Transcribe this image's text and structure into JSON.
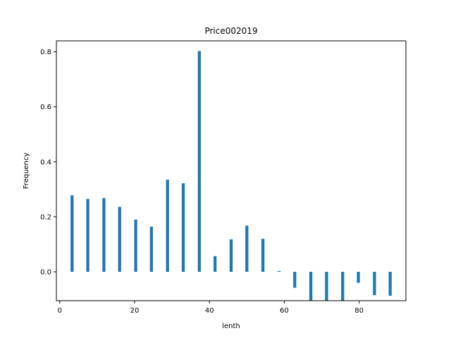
{
  "chart_data": {
    "type": "bar",
    "title": "Price002019",
    "xlabel": "lenth",
    "ylabel": "Frequency",
    "xlim": [
      -0.9,
      92.5
    ],
    "ylim": [
      -0.105,
      0.84
    ],
    "x_ticks": [
      0,
      20,
      40,
      60,
      80
    ],
    "y_ticks": [
      0.0,
      0.2,
      0.4,
      0.6,
      0.8
    ],
    "x_tick_labels": [
      "0",
      "20",
      "40",
      "60",
      "80"
    ],
    "y_tick_labels": [
      "0.0",
      "0.2",
      "0.4",
      "0.6",
      "0.8"
    ],
    "bar_width": 0.8,
    "color": "#1f77b4",
    "grid": false,
    "series": [
      {
        "x": [
          3.3,
          7.5,
          11.8,
          16.0,
          20.3,
          24.5,
          28.8,
          33.0,
          37.3,
          41.5,
          45.8,
          50.0,
          54.3,
          58.6,
          62.8,
          67.1,
          71.3,
          75.6,
          79.8,
          84.1,
          88.3
        ],
        "values": [
          0.278,
          0.265,
          0.268,
          0.236,
          0.19,
          0.164,
          0.335,
          0.322,
          0.803,
          0.057,
          0.118,
          0.168,
          0.12,
          0.003,
          -0.058,
          -0.105,
          -0.105,
          -0.105,
          -0.04,
          -0.085,
          -0.087
        ]
      }
    ]
  }
}
